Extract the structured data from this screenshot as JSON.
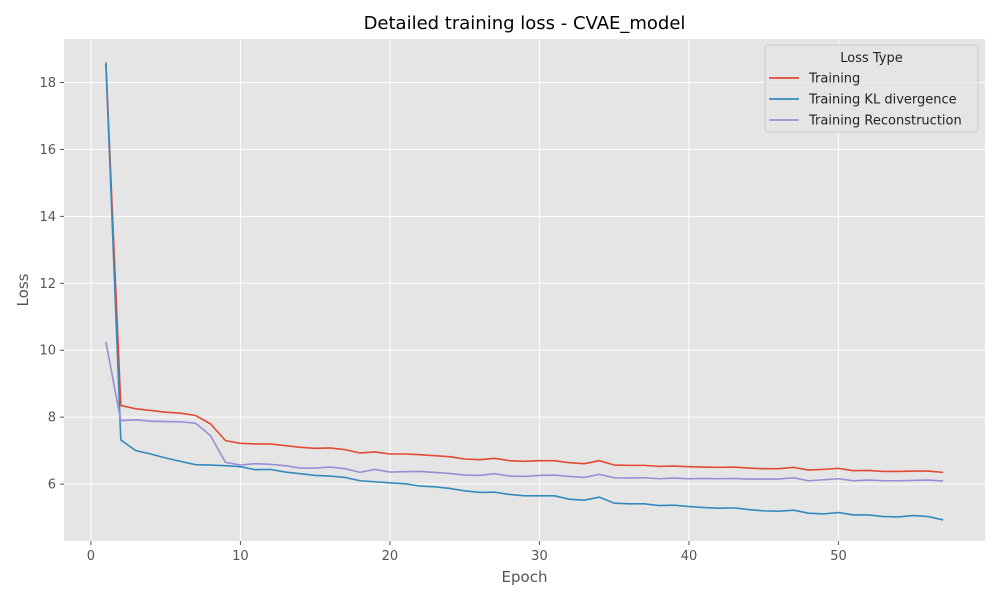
{
  "chart_data": {
    "type": "line",
    "title": "Detailed training loss - CVAE_model",
    "xlabel": "Epoch",
    "ylabel": "Loss",
    "xlim": [
      -1.8,
      59.8
    ],
    "ylim": [
      4.3,
      19.3
    ],
    "xticks": [
      0,
      10,
      20,
      30,
      40,
      50
    ],
    "yticks": [
      6,
      8,
      10,
      12,
      14,
      16,
      18
    ],
    "grid": true,
    "legend": {
      "title": "Loss Type",
      "placement": "top-right"
    },
    "x": [
      1,
      2,
      3,
      4,
      5,
      6,
      7,
      8,
      9,
      10,
      11,
      12,
      13,
      14,
      15,
      16,
      17,
      18,
      19,
      20,
      21,
      22,
      23,
      24,
      25,
      26,
      27,
      28,
      29,
      30,
      31,
      32,
      33,
      34,
      35,
      36,
      37,
      38,
      39,
      40,
      41,
      42,
      43,
      44,
      45,
      46,
      47,
      48,
      49,
      50,
      51,
      52,
      53,
      54,
      55,
      56,
      57
    ],
    "series": [
      {
        "name": "Training",
        "color": "#E24A33",
        "values": [
          18.6,
          8.35,
          8.25,
          8.2,
          8.15,
          8.12,
          8.05,
          7.8,
          7.3,
          7.22,
          7.2,
          7.2,
          7.15,
          7.1,
          7.07,
          7.08,
          7.03,
          6.93,
          6.96,
          6.9,
          6.9,
          6.88,
          6.85,
          6.82,
          6.75,
          6.73,
          6.77,
          6.7,
          6.68,
          6.7,
          6.7,
          6.64,
          6.61,
          6.7,
          6.57,
          6.56,
          6.56,
          6.53,
          6.54,
          6.52,
          6.51,
          6.5,
          6.51,
          6.48,
          6.46,
          6.46,
          6.5,
          6.42,
          6.44,
          6.47,
          6.4,
          6.41,
          6.38,
          6.38,
          6.39,
          6.39,
          6.35
        ]
      },
      {
        "name": "Training KL divergence",
        "color": "#348ABD",
        "values": [
          18.6,
          7.32,
          7.0,
          6.9,
          6.78,
          6.68,
          6.58,
          6.57,
          6.55,
          6.52,
          6.43,
          6.44,
          6.36,
          6.31,
          6.26,
          6.24,
          6.2,
          6.1,
          6.07,
          6.04,
          6.01,
          5.94,
          5.92,
          5.87,
          5.8,
          5.75,
          5.76,
          5.69,
          5.65,
          5.65,
          5.65,
          5.55,
          5.52,
          5.61,
          5.43,
          5.41,
          5.41,
          5.36,
          5.37,
          5.33,
          5.3,
          5.28,
          5.29,
          5.24,
          5.2,
          5.19,
          5.22,
          5.13,
          5.11,
          5.15,
          5.08,
          5.08,
          5.03,
          5.02,
          5.06,
          5.03,
          4.93
        ]
      },
      {
        "name": "Training Reconstruction",
        "color": "#988ED5",
        "values": [
          10.25,
          7.9,
          7.92,
          7.88,
          7.87,
          7.86,
          7.82,
          7.45,
          6.65,
          6.57,
          6.61,
          6.59,
          6.55,
          6.48,
          6.48,
          6.51,
          6.46,
          6.35,
          6.44,
          6.36,
          6.37,
          6.38,
          6.35,
          6.32,
          6.27,
          6.26,
          6.31,
          6.24,
          6.23,
          6.26,
          6.27,
          6.23,
          6.2,
          6.29,
          6.19,
          6.18,
          6.19,
          6.16,
          6.18,
          6.16,
          6.17,
          6.16,
          6.17,
          6.15,
          6.15,
          6.15,
          6.19,
          6.1,
          6.13,
          6.16,
          6.1,
          6.12,
          6.1,
          6.1,
          6.11,
          6.12,
          6.09
        ]
      }
    ]
  }
}
